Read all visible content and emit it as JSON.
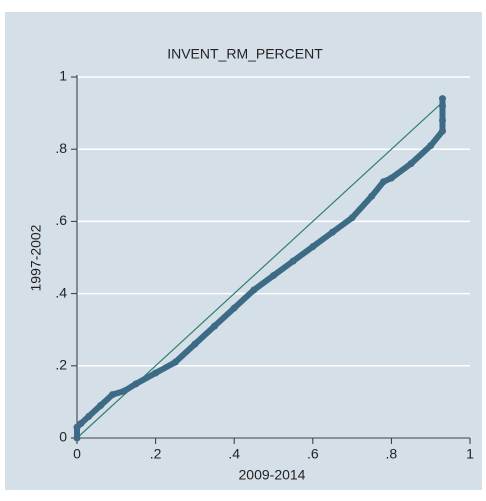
{
  "chart_data": {
    "type": "scatter",
    "title": "INVENT_RM_PERCENT",
    "x_label": "2009-2014",
    "y_label": "1997-2002",
    "series": [
      {
        "name": null,
        "color": "#3d6b85",
        "x": [
          0,
          0,
          0.01,
          0.03,
          0.06,
          0.09,
          0.12,
          0.15,
          0.2,
          0.25,
          0.3,
          0.35,
          0.4,
          0.45,
          0.5,
          0.55,
          0.6,
          0.65,
          0.7,
          0.75,
          0.78,
          0.8,
          0.85,
          0.9,
          0.93,
          0.93,
          0.93,
          0.93
        ],
        "values": [
          0,
          0.03,
          0.04,
          0.06,
          0.09,
          0.12,
          0.13,
          0.15,
          0.18,
          0.21,
          0.26,
          0.31,
          0.36,
          0.41,
          0.45,
          0.49,
          0.53,
          0.57,
          0.61,
          0.67,
          0.71,
          0.72,
          0.76,
          0.81,
          0.85,
          0.88,
          0.92,
          0.94
        ]
      }
    ],
    "reference_line": {
      "color": "#2f7f70",
      "x": [
        0,
        0.93
      ],
      "y": [
        0,
        0.93
      ]
    },
    "xlim": [
      0,
      1
    ],
    "ylim": [
      0,
      1
    ],
    "xticks": [
      0,
      {
        "value": 0.2,
        "label": ".2"
      },
      {
        "value": 0.4,
        "label": ".4"
      },
      {
        "value": 0.6,
        "label": ".6"
      },
      {
        "value": 0.8,
        "label": ".8"
      },
      1
    ],
    "yticks": [
      0,
      {
        "value": 0.2,
        "label": ".2"
      },
      {
        "value": 0.4,
        "label": ".4"
      },
      {
        "value": 0.6,
        "label": ".6"
      },
      {
        "value": 0.8,
        "label": ".8"
      },
      1
    ],
    "grid": true
  }
}
